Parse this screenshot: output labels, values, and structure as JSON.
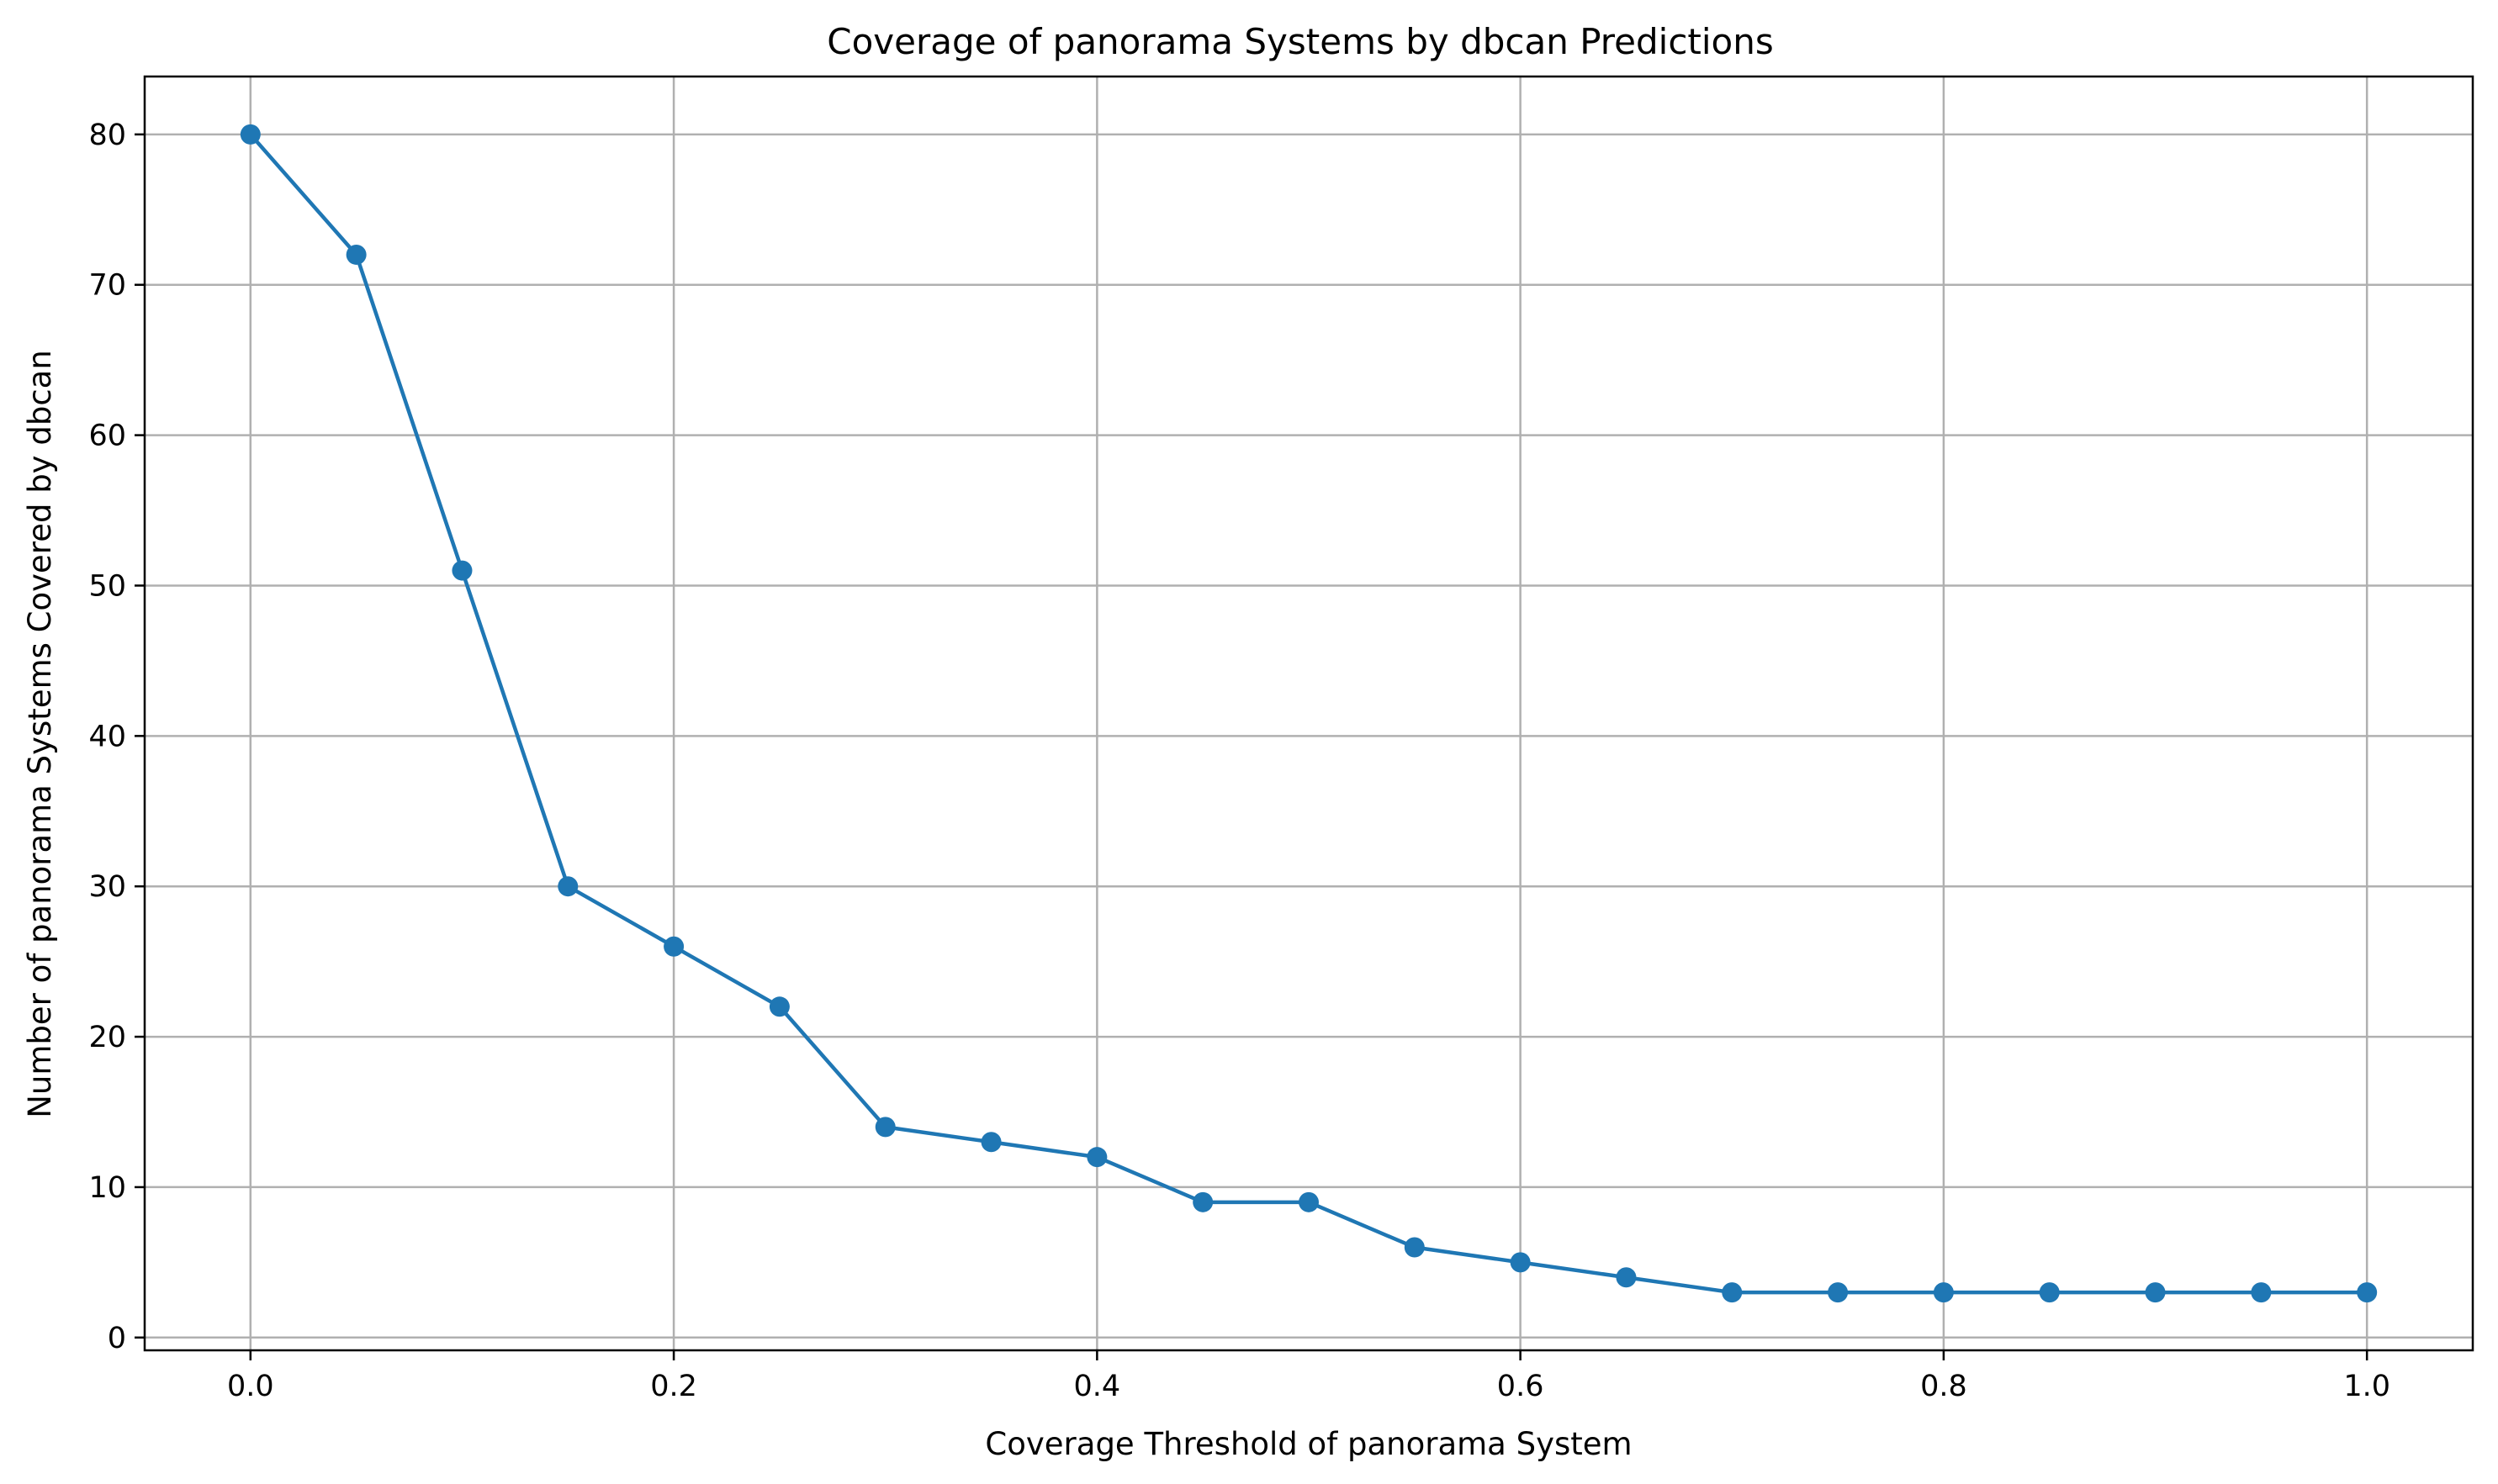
{
  "chart_data": {
    "type": "line",
    "title": "Coverage of panorama Systems by dbcan Predictions",
    "xlabel": "Coverage Threshold of panorama System",
    "ylabel": "Number of panorama Systems Covered by dbcan",
    "x": [
      0.0,
      0.05,
      0.1,
      0.15,
      0.2,
      0.25,
      0.3,
      0.35,
      0.4,
      0.45,
      0.5,
      0.55,
      0.6,
      0.65,
      0.7,
      0.75,
      0.8,
      0.85,
      0.9,
      0.95,
      1.0
    ],
    "series": [
      {
        "values": [
          80,
          72,
          51,
          30,
          26,
          22,
          14,
          13,
          12,
          9,
          9,
          6,
          5,
          4,
          3,
          3,
          3,
          3,
          3,
          3,
          3
        ],
        "color": "#1f77b4",
        "marker": "circle"
      }
    ],
    "xlim": [
      -0.05,
      1.05
    ],
    "ylim": [
      -0.85,
      83.85
    ],
    "xticks": [
      0.0,
      0.2,
      0.4,
      0.6,
      0.8,
      1.0
    ],
    "xtick_labels": [
      "0.0",
      "0.2",
      "0.4",
      "0.6",
      "0.8",
      "1.0"
    ],
    "yticks": [
      0,
      10,
      20,
      30,
      40,
      50,
      60,
      70,
      80
    ],
    "ytick_labels": [
      "0",
      "10",
      "20",
      "30",
      "40",
      "50",
      "60",
      "70",
      "80"
    ],
    "grid": true,
    "legend": "none"
  }
}
